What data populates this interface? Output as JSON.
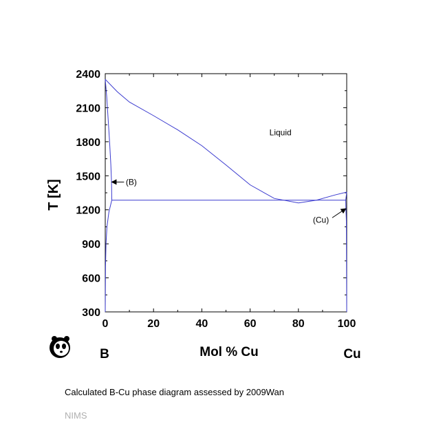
{
  "chart_data": {
    "type": "line",
    "title": "",
    "xlabel": "Mol % Cu",
    "ylabel": "T [K]",
    "xlim": [
      0,
      100
    ],
    "ylim": [
      300,
      2400
    ],
    "x_ticks": [
      0,
      20,
      40,
      60,
      80,
      100
    ],
    "y_ticks": [
      300,
      600,
      900,
      1200,
      1500,
      1800,
      2100,
      2400
    ],
    "x_tick_labels": [
      "0",
      "20",
      "40",
      "60",
      "80",
      "100"
    ],
    "y_tick_labels": [
      "300",
      "600",
      "900",
      "1200",
      "1500",
      "1800",
      "2100",
      "2400"
    ],
    "left_element": "B",
    "right_element": "Cu",
    "grid": false,
    "line_color": "#3a3acf",
    "series": [
      {
        "points": [
          [
            0,
            2350
          ],
          [
            5,
            2240
          ],
          [
            10,
            2150
          ],
          [
            20,
            2030
          ],
          [
            30,
            1905
          ],
          [
            40,
            1765
          ],
          [
            50,
            1595
          ],
          [
            60,
            1420
          ],
          [
            70,
            1300
          ],
          [
            80,
            1260
          ],
          [
            87.5,
            1285
          ],
          [
            95,
            1330
          ],
          [
            100,
            1356
          ]
        ]
      },
      {
        "points": [
          [
            0,
            2350
          ],
          [
            0.6,
            2200
          ],
          [
            1.2,
            2000
          ],
          [
            1.8,
            1800
          ],
          [
            2.3,
            1600
          ],
          [
            2.6,
            1450
          ],
          [
            2.7,
            1285
          ]
        ]
      },
      {
        "points": [
          [
            0,
            300
          ],
          [
            0.1,
            700
          ],
          [
            0.3,
            900
          ],
          [
            0.7,
            1050
          ],
          [
            1.5,
            1180
          ],
          [
            2.7,
            1285
          ]
        ]
      },
      {
        "points": [
          [
            2.7,
            1285
          ],
          [
            87.5,
            1285
          ],
          [
            99.6,
            1285
          ]
        ]
      },
      {
        "points": [
          [
            100,
            1356
          ],
          [
            99.6,
            1285
          ],
          [
            99.7,
            1200
          ],
          [
            99.85,
            1100
          ],
          [
            100,
            300
          ]
        ]
      }
    ],
    "annotations": [
      {
        "text": "Liquid",
        "x": 68,
        "y": 1880
      },
      {
        "text": "(B)",
        "x": 8.5,
        "y": 1445,
        "arrow_to": [
          2.7,
          1445
        ],
        "arrow_from": [
          7.8,
          1445
        ]
      },
      {
        "text": "(Cu)",
        "x": 86,
        "y": 1110,
        "arrow_to": [
          99.6,
          1210
        ],
        "arrow_from": [
          94,
          1130
        ]
      }
    ]
  },
  "caption": "Calculated B-Cu phase diagram assessed by 2009Wan",
  "source": "NIMS"
}
